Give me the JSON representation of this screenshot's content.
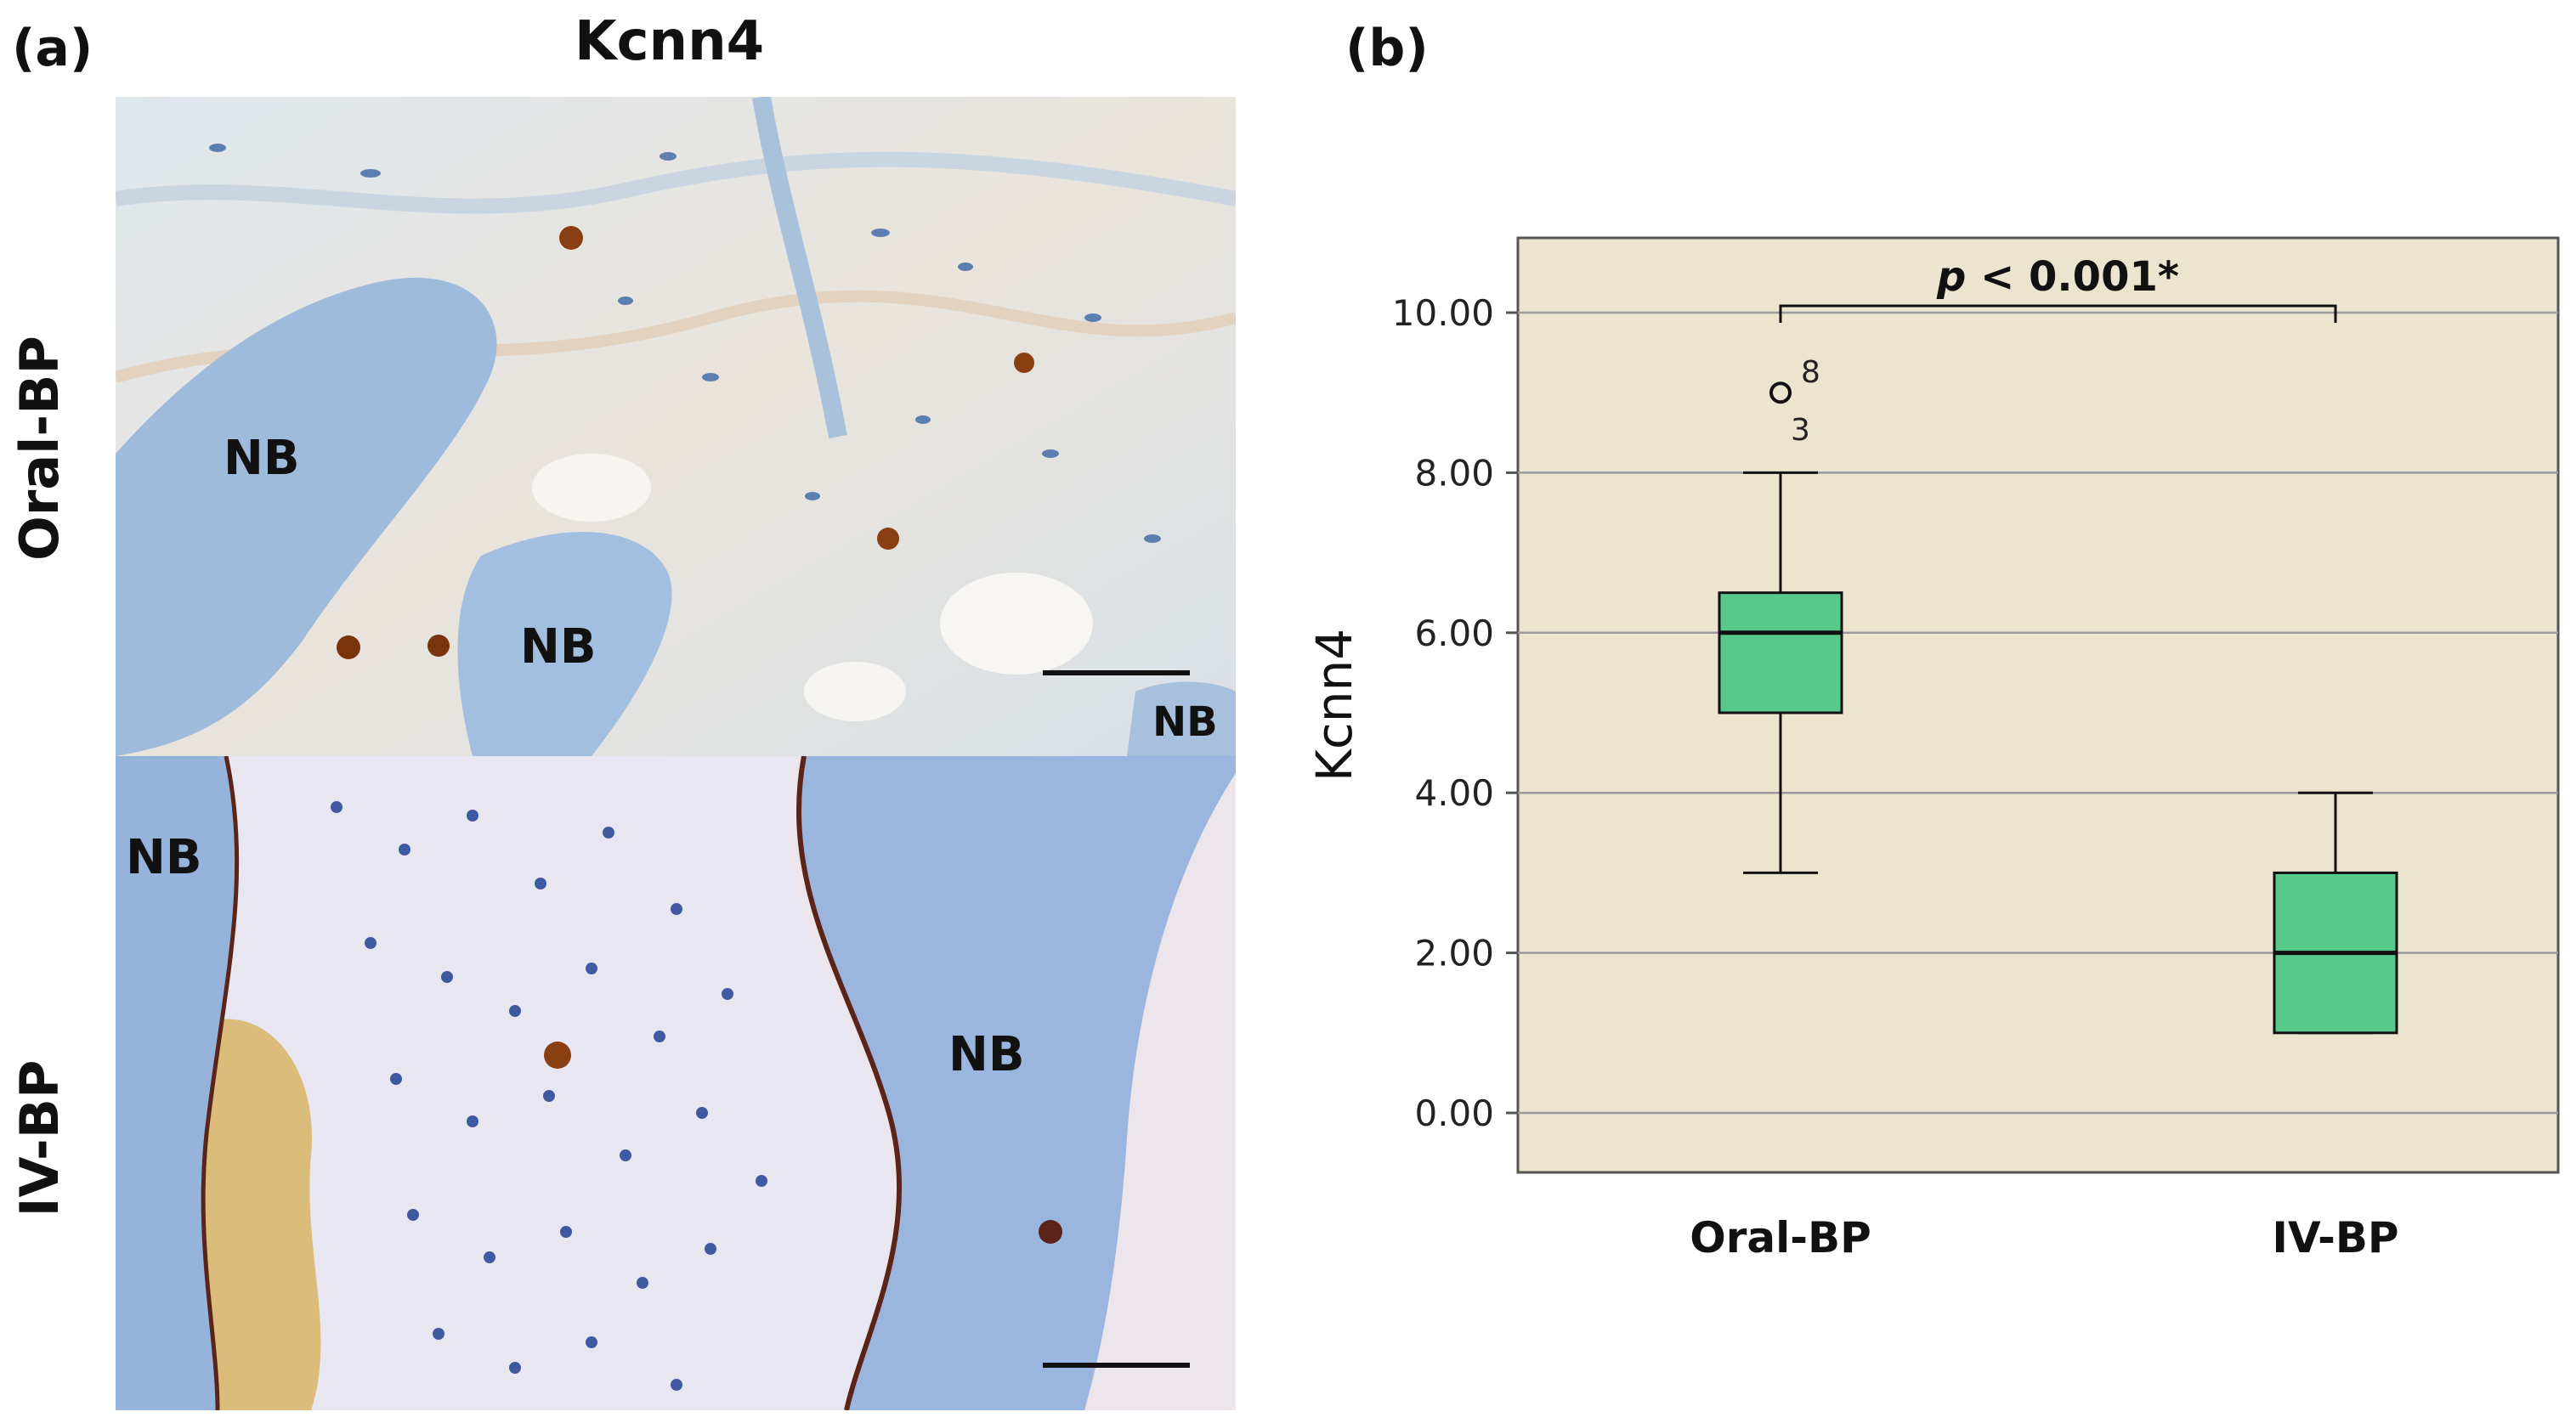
{
  "panel_a": {
    "label": "(a)",
    "title": "Kcnn4",
    "rows": [
      {
        "label": "Oral-BP",
        "nb_labels": [
          "NB",
          "NB",
          "NB"
        ]
      },
      {
        "label": "IV-BP",
        "nb_labels": [
          "NB",
          "NB"
        ]
      }
    ]
  },
  "panel_b": {
    "label": "(b)"
  },
  "colors": {
    "plot_bg": "#ebe4cf",
    "box_fill": "#57c98b",
    "tissue_top": "#d3dde6",
    "bone_blue": "#9fbbdc",
    "stain_brown": "#8a3f12"
  },
  "chart_data": {
    "type": "box",
    "ylabel": "Kcnn4",
    "xlabel": "",
    "ylim": [
      0,
      10
    ],
    "yticks": [
      "0.00",
      "2.00",
      "4.00",
      "6.00",
      "8.00",
      "10.00"
    ],
    "grid": true,
    "categories": [
      "Oral-BP",
      "IV-BP"
    ],
    "boxes": [
      {
        "category": "Oral-BP",
        "min": 3,
        "q1": 5,
        "median": 6,
        "q3": 6.5,
        "max": 8,
        "outliers": [
          {
            "value": 9,
            "labels": [
              "8",
              "3"
            ]
          }
        ]
      },
      {
        "category": "IV-BP",
        "min": 1,
        "q1": 1,
        "median": 2,
        "q3": 3,
        "max": 4,
        "outliers": []
      }
    ],
    "annotation": {
      "text": "p < 0.001*",
      "p_part": "p",
      "rest_part": " < 0.001*"
    }
  }
}
